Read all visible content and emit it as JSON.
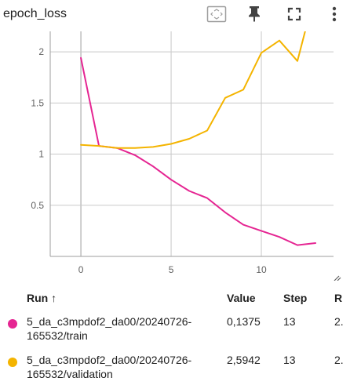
{
  "header": {
    "title": "epoch_loss",
    "toolbar": [
      {
        "name": "fit-domain-icon"
      },
      {
        "name": "pin-icon"
      },
      {
        "name": "fullscreen-icon"
      },
      {
        "name": "more-vert-icon"
      }
    ]
  },
  "colors": {
    "train": "#e52592",
    "validation": "#f4b400",
    "grid": "#c8c8c8",
    "axis": "#9e9e9e"
  },
  "chart_data": {
    "type": "line",
    "title": "",
    "xlabel": "",
    "ylabel": "",
    "xlim": [
      -1.7,
      14
    ],
    "ylim": [
      0,
      2.2
    ],
    "x_ticks": [
      0,
      5,
      10
    ],
    "y_ticks": [
      0.5,
      1,
      1.5,
      2
    ],
    "y_tick_labels": [
      "0.5",
      "1",
      "1.5",
      "2"
    ],
    "grid": true,
    "series": [
      {
        "name": "5_da_c3mpdof2_da00/20240726-165532/train",
        "color": "#e52592",
        "x": [
          0,
          1,
          2,
          3,
          4,
          5,
          6,
          7,
          8,
          9,
          10,
          11,
          12,
          13
        ],
        "y": [
          1.94,
          1.08,
          1.06,
          0.99,
          0.88,
          0.75,
          0.64,
          0.57,
          0.43,
          0.31,
          0.25,
          0.19,
          0.11,
          0.13
        ]
      },
      {
        "name": "5_da_c3mpdof2_da00/20240726-165532/validation",
        "color": "#f4b400",
        "x": [
          0,
          1,
          2,
          3,
          4,
          5,
          6,
          7,
          8,
          9,
          10,
          11,
          12,
          13
        ],
        "y": [
          1.09,
          1.08,
          1.06,
          1.06,
          1.07,
          1.1,
          1.15,
          1.23,
          1.55,
          1.63,
          1.99,
          2.11,
          1.91,
          2.59
        ]
      }
    ]
  },
  "table": {
    "col_run": "Run ↑",
    "col_value": "Value",
    "col_step": "Step",
    "col_extra": "R",
    "rows": [
      {
        "run_line1": "5_da_c3mpdof2_da00/20240726-",
        "run_line2": "165532/train",
        "value": "0,1375",
        "step": "13",
        "extra": "2.",
        "color": "#e52592"
      },
      {
        "run_line1": "5_da_c3mpdof2_da00/20240726-",
        "run_line2": "165532/validation",
        "value": "2,5942",
        "step": "13",
        "extra": "2.",
        "color": "#f4b400"
      }
    ]
  }
}
